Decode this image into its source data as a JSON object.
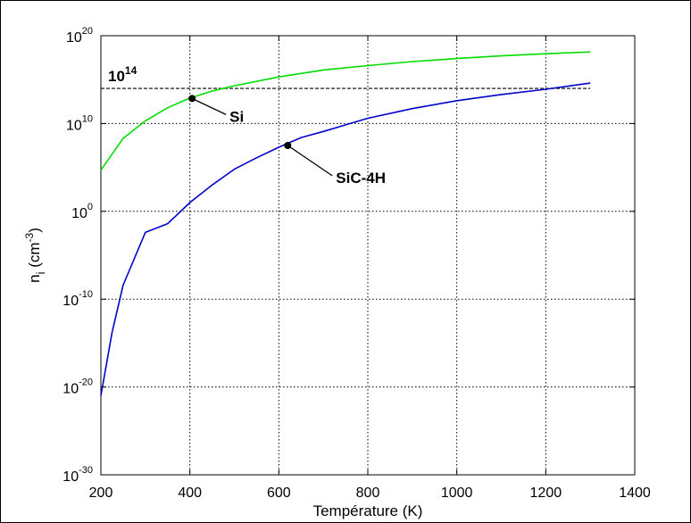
{
  "chart_data": {
    "type": "line",
    "xlabel": "Température (K)",
    "ylabel": {
      "base": "n",
      "sub": "i",
      "unit_prefix": " (cm",
      "unit_exp": "-3",
      "unit_suffix": ")"
    },
    "x_range": [
      200,
      1400
    ],
    "y_range_log10": [
      -30,
      20
    ],
    "y_scale": "log",
    "grid": true,
    "x_ticks": [
      200,
      400,
      600,
      800,
      1000,
      1200,
      1400
    ],
    "y_ticks": [
      {
        "base": "10",
        "exp": "20",
        "log": 20
      },
      {
        "base": "10",
        "exp": "10",
        "log": 10
      },
      {
        "base": "10",
        "exp": "0",
        "log": 0
      },
      {
        "base": "10",
        "exp": "-10",
        "log": -10
      },
      {
        "base": "10",
        "exp": "-20",
        "log": -20
      },
      {
        "base": "10",
        "exp": "-30",
        "log": -30
      }
    ],
    "series": [
      {
        "color": "#00dd00",
        "x": [
          200,
          250,
          300,
          350,
          400,
          450,
          500,
          600,
          700,
          800,
          900,
          1000,
          1100,
          1200,
          1300
        ],
        "log_y": [
          4.7,
          8.3,
          10.3,
          11.8,
          12.9,
          13.7,
          14.3,
          15.3,
          16.1,
          16.6,
          17.05,
          17.4,
          17.7,
          17.95,
          18.15
        ]
      },
      {
        "color": "#0000cc",
        "x": [
          200,
          225,
          250,
          300,
          350,
          400,
          450,
          500,
          550,
          600,
          650,
          700,
          800,
          900,
          1000,
          1100,
          1200,
          1300
        ],
        "log_y": [
          -21,
          -13.8,
          -8.4,
          -2.4,
          -1.4,
          1.0,
          3.0,
          4.8,
          6.1,
          7.3,
          8.4,
          9.1,
          10.6,
          11.7,
          12.6,
          13.3,
          13.9,
          14.6
        ]
      }
    ],
    "reference_line": {
      "log_y": 14,
      "label_base": "10",
      "label_exp": "14",
      "x_start": 200,
      "x_end": 1300
    },
    "annotations": [
      {
        "label": "Si",
        "x": 405,
        "log_y": 12.85
      },
      {
        "label": "SiC-4H",
        "x": 620,
        "log_y": 7.5
      }
    ]
  }
}
